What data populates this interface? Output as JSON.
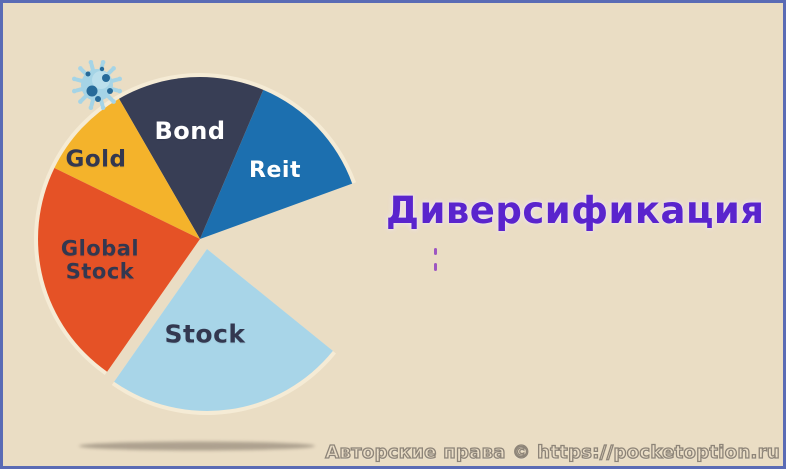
{
  "title": {
    "text": "Диверсификация"
  },
  "watermark": {
    "text": "Авторские права © https://pocketoption.ru"
  },
  "palette": {
    "background": "#EADDC4",
    "frame_border": "#5A6BB5",
    "title_text": "#5A24CD",
    "label_dark": "#333850",
    "label_light": "#FFFFFF",
    "watermark_outline": "#8D8478",
    "shadow": "#9F9382",
    "backing_cream": "#F5EBD5",
    "virus_body": "#A5D4E6",
    "virus_spots": "#266A99"
  },
  "chart_data": {
    "type": "pie",
    "title": "Диверсификация",
    "legend": "none",
    "style_note": "pac-man style pie with missing wedge opening to the right; Stock slice exploded outward",
    "center": [
      197,
      236
    ],
    "radius": 162,
    "missing_wedge_deg": 59,
    "backing_wedges": [
      {
        "from_deg": 235,
        "to_deg": 20
      },
      {
        "from_deg": 321,
        "to_deg": 235,
        "offset": [
          7,
          10
        ]
      }
    ],
    "segments": [
      {
        "label": "Reit",
        "from_deg": 67,
        "to_deg": 20,
        "span_deg": 47,
        "approx_percent": 13,
        "color": "#1C6FAF",
        "label_color": "#FFFFFF",
        "label_pos": [
          272,
          168
        ],
        "label_size": 22
      },
      {
        "label": "Bond",
        "from_deg": 120,
        "to_deg": 67,
        "span_deg": 53,
        "approx_percent": 15,
        "color": "#383E55",
        "label_color": "#FFFFFF",
        "label_pos": [
          187,
          129
        ],
        "label_size": 24
      },
      {
        "label": "Gold",
        "from_deg": 154,
        "to_deg": 120,
        "span_deg": 34,
        "approx_percent": 9.5,
        "color": "#F4B32B",
        "label_color": "#333850",
        "label_pos": [
          93,
          157
        ],
        "label_size": 23
      },
      {
        "label": "Global\nStock",
        "from_deg": 235,
        "to_deg": 154,
        "span_deg": 81,
        "approx_percent": 22.5,
        "color": "#E55226",
        "label_color": "#333850",
        "label_pos": [
          97,
          257
        ],
        "label_size": 21
      },
      {
        "label": "Stock",
        "from_deg": 321,
        "to_deg": 235,
        "span_deg": 86,
        "approx_percent": 24,
        "color": "#A8D5E8",
        "label_color": "#333850",
        "label_pos": [
          202,
          331
        ],
        "label_size": 25,
        "offset": [
          7,
          10
        ]
      }
    ]
  }
}
